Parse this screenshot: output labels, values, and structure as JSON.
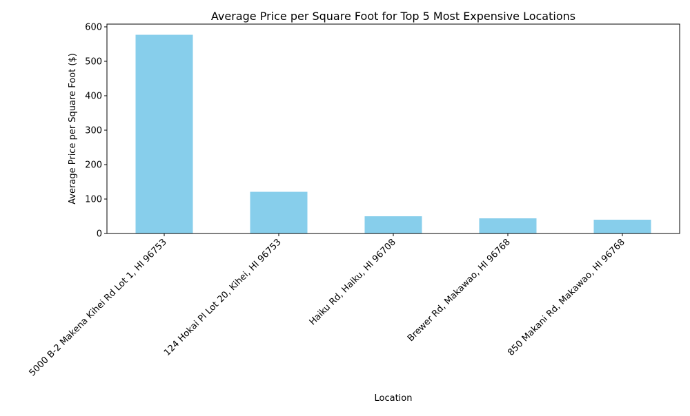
{
  "chart_data": {
    "type": "bar",
    "title": "Average Price per Square Foot for Top 5 Most Expensive Locations",
    "xlabel": "Location",
    "ylabel": "Average Price per Square Foot ($)",
    "categories": [
      "5000 B-2 Makena Kihei Rd Lot 1, HI 96753",
      "124 Hokai Pl Lot 20, Kihei, HI 96753",
      "Haiku Rd, Haiku, HI 96708",
      "Brewer Rd, Makawao, HI 96768",
      "850 Makani Rd, Makawao, HI 96768"
    ],
    "values": [
      577,
      121,
      50,
      44,
      40
    ],
    "ylim": [
      0,
      608
    ],
    "yticks": [
      0,
      100,
      200,
      300,
      400,
      500,
      600
    ],
    "bar_color": "#87ceeb",
    "grid": false,
    "legend": false
  }
}
